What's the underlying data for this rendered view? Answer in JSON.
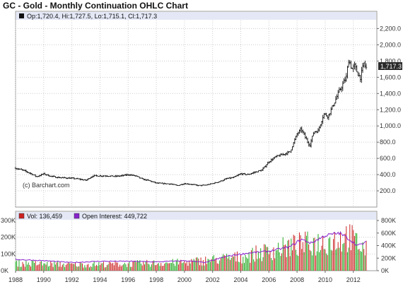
{
  "chart_data": [
    {
      "type": "ohlc",
      "title": "GC - Gold - Monthly Continuation OHLC Chart",
      "ohlc_info": "Op:1,720.4, Hi:1,727.5, Lo:1,715.1, Cl:1,717.3",
      "last_price_label": "1,717.3",
      "credit": "(c) Barchart.com",
      "ylim": [
        0,
        2300
      ],
      "yticks": [
        200,
        400,
        600,
        800,
        1000,
        1200,
        1400,
        1600,
        1800,
        2000,
        2200
      ],
      "ytick_labels": [
        "200.0",
        "400.0",
        "600.0",
        "800.0",
        "1,000.0",
        "1,200.0",
        "1,400.0",
        "1,600.0",
        "1,800.0",
        "2,000.0",
        "2,200.0"
      ],
      "xlim": [
        1988.0,
        2013.67
      ],
      "xticks": [
        1988,
        1990,
        1992,
        1994,
        1996,
        1998,
        2000,
        2002,
        2004,
        2006,
        2008,
        2010,
        2012
      ],
      "xtick_labels": [
        "1988",
        "1990",
        "1992",
        "1994",
        "1996",
        "1998",
        "2000",
        "2002",
        "2004",
        "2006",
        "2008",
        "2010",
        "2012"
      ],
      "grid": true,
      "close_path": [
        [
          1988.0,
          480
        ],
        [
          1988.5,
          455
        ],
        [
          1989.0,
          420
        ],
        [
          1989.5,
          375
        ],
        [
          1990.0,
          410
        ],
        [
          1990.5,
          380
        ],
        [
          1991.0,
          365
        ],
        [
          1991.5,
          360
        ],
        [
          1992.0,
          355
        ],
        [
          1992.5,
          345
        ],
        [
          1993.0,
          330
        ],
        [
          1993.5,
          385
        ],
        [
          1994.0,
          385
        ],
        [
          1994.5,
          385
        ],
        [
          1995.0,
          378
        ],
        [
          1995.5,
          385
        ],
        [
          1996.0,
          400
        ],
        [
          1996.5,
          385
        ],
        [
          1997.0,
          345
        ],
        [
          1997.5,
          325
        ],
        [
          1998.0,
          295
        ],
        [
          1998.5,
          290
        ],
        [
          1999.0,
          285
        ],
        [
          1999.5,
          265
        ],
        [
          2000.0,
          290
        ],
        [
          2000.5,
          280
        ],
        [
          2001.0,
          265
        ],
        [
          2001.5,
          270
        ],
        [
          2002.0,
          290
        ],
        [
          2002.5,
          315
        ],
        [
          2003.0,
          350
        ],
        [
          2003.5,
          365
        ],
        [
          2004.0,
          410
        ],
        [
          2004.5,
          400
        ],
        [
          2005.0,
          430
        ],
        [
          2005.5,
          455
        ],
        [
          2006.0,
          560
        ],
        [
          2006.5,
          620
        ],
        [
          2007.0,
          650
        ],
        [
          2007.5,
          680
        ],
        [
          2008.0,
          900
        ],
        [
          2008.3,
          960
        ],
        [
          2008.7,
          820
        ],
        [
          2008.9,
          760
        ],
        [
          2009.2,
          930
        ],
        [
          2009.5,
          940
        ],
        [
          2009.9,
          1150
        ],
        [
          2010.2,
          1120
        ],
        [
          2010.5,
          1230
        ],
        [
          2010.9,
          1390
        ],
        [
          2011.2,
          1500
        ],
        [
          2011.5,
          1600
        ],
        [
          2011.67,
          1820
        ],
        [
          2011.9,
          1700
        ],
        [
          2012.1,
          1740
        ],
        [
          2012.3,
          1650
        ],
        [
          2012.5,
          1600
        ],
        [
          2012.75,
          1770
        ],
        [
          2012.9,
          1717
        ]
      ]
    },
    {
      "type": "bar+line",
      "series": [
        {
          "name": "Vol: 136,459",
          "color": "#cc2222"
        },
        {
          "name": "Open Interest: 449,722",
          "color": "#8822cc"
        }
      ],
      "left_ylim": [
        0,
        300000
      ],
      "left_ytick_labels": [
        "0K",
        "100K",
        "200K",
        "300K"
      ],
      "left_yticks": [
        0,
        100000,
        200000,
        300000
      ],
      "right_ylim": [
        0,
        800000
      ],
      "right_ytick_labels": [
        "0K",
        "200K",
        "400K",
        "600K",
        "800K"
      ],
      "right_yticks": [
        0,
        200000,
        400000,
        600000,
        800000
      ],
      "volume_path": [
        [
          1988.0,
          50000
        ],
        [
          1992.0,
          40000
        ],
        [
          1996.0,
          45000
        ],
        [
          2000.0,
          55000
        ],
        [
          2004.0,
          90000
        ],
        [
          2007.0,
          150000
        ],
        [
          2008.0,
          170000
        ],
        [
          2010.0,
          190000
        ],
        [
          2011.6,
          230000
        ],
        [
          2012.9,
          136459
        ]
      ],
      "open_interest_path": [
        [
          1988.0,
          180000
        ],
        [
          1989.0,
          170000
        ],
        [
          1990.0,
          160000
        ],
        [
          1992.0,
          130000
        ],
        [
          1994.0,
          150000
        ],
        [
          1996.0,
          150000
        ],
        [
          1998.0,
          140000
        ],
        [
          2000.0,
          160000
        ],
        [
          2001.5,
          130000
        ],
        [
          2003.0,
          230000
        ],
        [
          2004.5,
          280000
        ],
        [
          2006.0,
          310000
        ],
        [
          2007.5,
          380000
        ],
        [
          2008.3,
          500000
        ],
        [
          2009.0,
          440000
        ],
        [
          2010.0,
          560000
        ],
        [
          2011.0,
          600000
        ],
        [
          2011.6,
          520000
        ],
        [
          2012.3,
          400000
        ],
        [
          2012.9,
          449722
        ]
      ]
    }
  ]
}
